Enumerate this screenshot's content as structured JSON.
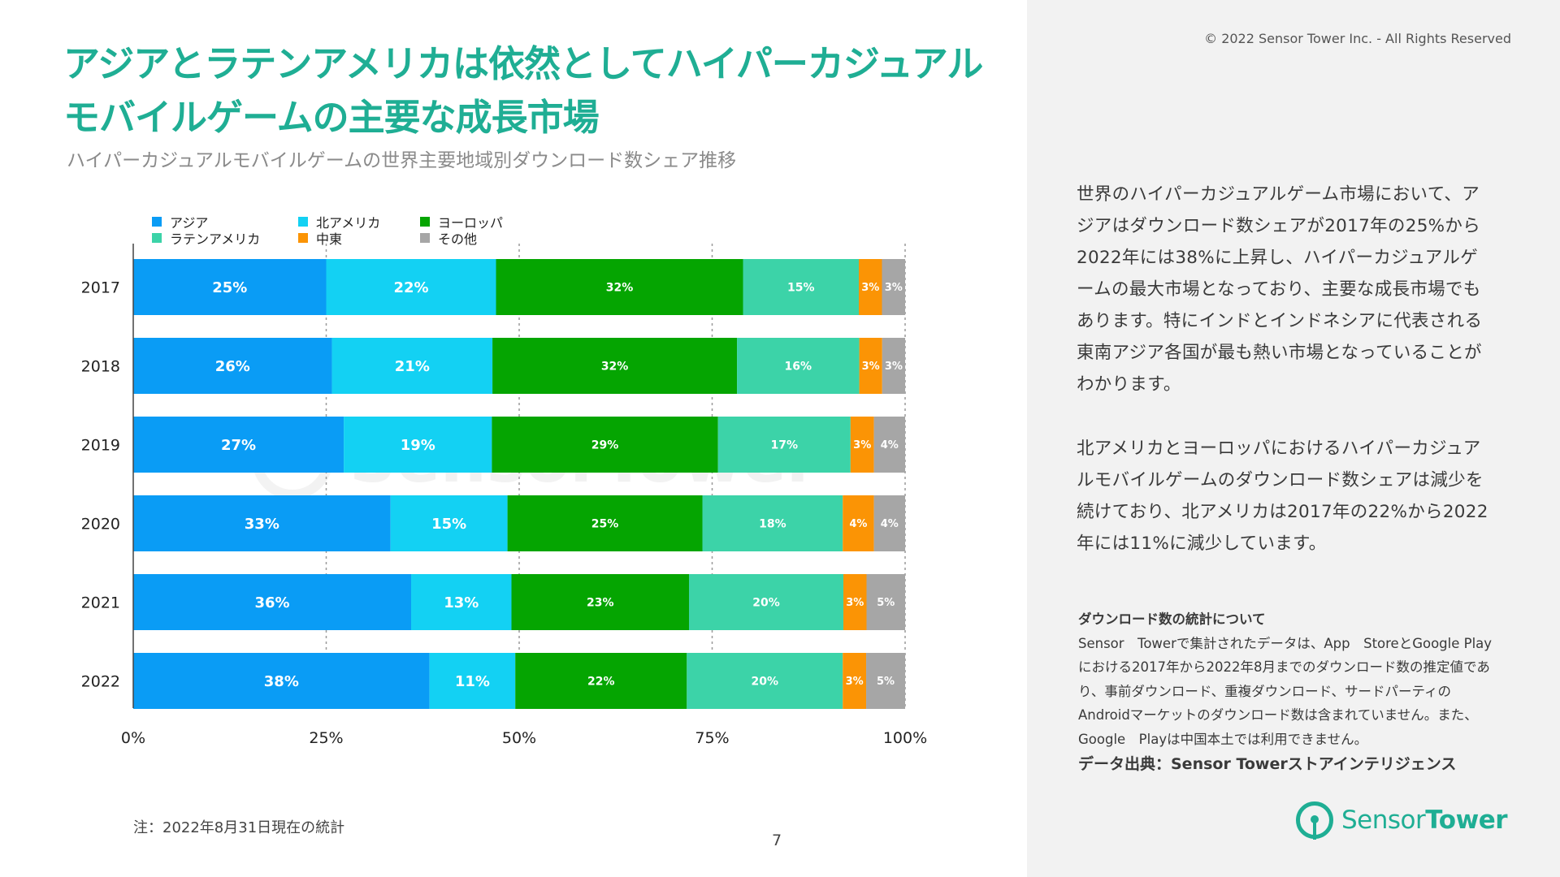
{
  "copyright": "© 2022 Sensor Tower Inc. - All Rights Reserved",
  "title_line1": "アジアとラテンアメリカは依然としてハイパーカジュアル",
  "title_line2": "モバイルゲームの主要な成長市場",
  "subtitle": "ハイパーカジュアルモバイルゲームの世界主要地域別ダウンロード数シェア推移",
  "note": "注：2022年8月31日現在の統計",
  "page_number": "7",
  "paragraph1": "世界のハイパーカジュアルゲーム市場において、アジアはダウンロード数シェアが2017年の25%から2022年には38%に上昇し、ハイパーカジュアルゲームの最大市場となっており、主要な成長市場でもあります。特にインドとインドネシアに代表される東南アジア各国が最も熱い市場となっていることがわかります。",
  "paragraph2": "北アメリカとヨーロッパにおけるハイパーカジュアルモバイルゲームのダウンロード数シェアは減少を続けており、北アメリカは2017年の22%から2022年には11%に減少しています。",
  "about_title": "ダウンロード数の統計について",
  "about_text": "Sensor　Towerで集計されたデータは、App　StoreとGoogle Playにおける2017年から2022年8月までのダウンロード数の推定値であり、事前ダウンロード、重複ダウンロード、サードパーティのAndroidマーケットのダウンロード数は含まれていません。また、Google　Playは中国本土では利用できません。",
  "source": "データ出典：Sensor Towerストアインテリジェンス",
  "logo_text_1": "Sensor",
  "logo_text_2": "Tower",
  "watermark_text": "SensorTower",
  "colors": {
    "accent": "#1fae94",
    "asia": "#0a9cf5",
    "north_america": "#13d1f3",
    "europe": "#05a501",
    "latin_america": "#3cd3a8",
    "middle_east": "#fb9405",
    "other": "#a6a6a6"
  },
  "chart_data": {
    "type": "bar",
    "orientation": "horizontal",
    "stacked": true,
    "categories": [
      "2017",
      "2018",
      "2019",
      "2020",
      "2021",
      "2022"
    ],
    "series": [
      {
        "name": "アジア",
        "color": "#0a9cf5",
        "values": [
          25,
          26,
          27,
          33,
          36,
          38
        ],
        "labels": [
          "25%",
          "26%",
          "27%",
          "33%",
          "36%",
          "38%"
        ]
      },
      {
        "name": "北アメリカ",
        "color": "#13d1f3",
        "values": [
          22,
          21,
          19,
          15,
          13,
          11
        ],
        "labels": [
          "22%",
          "21%",
          "19%",
          "15%",
          "13%",
          "11%"
        ]
      },
      {
        "name": "ヨーロッパ",
        "color": "#05a501",
        "values": [
          32,
          32,
          29,
          25,
          23,
          22
        ],
        "labels": [
          "32%",
          "32%",
          "29%",
          "25%",
          "23%",
          "22%"
        ]
      },
      {
        "name": "ラテンアメリカ",
        "color": "#3cd3a8",
        "values": [
          15,
          16,
          17,
          18,
          20,
          20
        ],
        "labels": [
          "15%",
          "16%",
          "17%",
          "18%",
          "20%",
          "20%"
        ]
      },
      {
        "name": "中東",
        "color": "#fb9405",
        "values": [
          3,
          3,
          3,
          4,
          3,
          3
        ],
        "labels": [
          "3%",
          "3%",
          "3%",
          "4%",
          "3%",
          "3%"
        ]
      },
      {
        "name": "その他",
        "color": "#a6a6a6",
        "values": [
          3,
          3,
          4,
          4,
          5,
          5
        ],
        "labels": [
          "3%",
          "3%",
          "4%",
          "4%",
          "5%",
          "5%"
        ]
      }
    ],
    "x_ticks": [
      "0%",
      "25%",
      "50%",
      "75%",
      "100%"
    ],
    "xlim": [
      0,
      100
    ],
    "legend_order": [
      "アジア",
      "北アメリカ",
      "ヨーロッパ",
      "ラテンアメリカ",
      "中東",
      "その他"
    ],
    "legend_position": "top-left",
    "gridlines": "dashed vertical at 25% intervals"
  }
}
